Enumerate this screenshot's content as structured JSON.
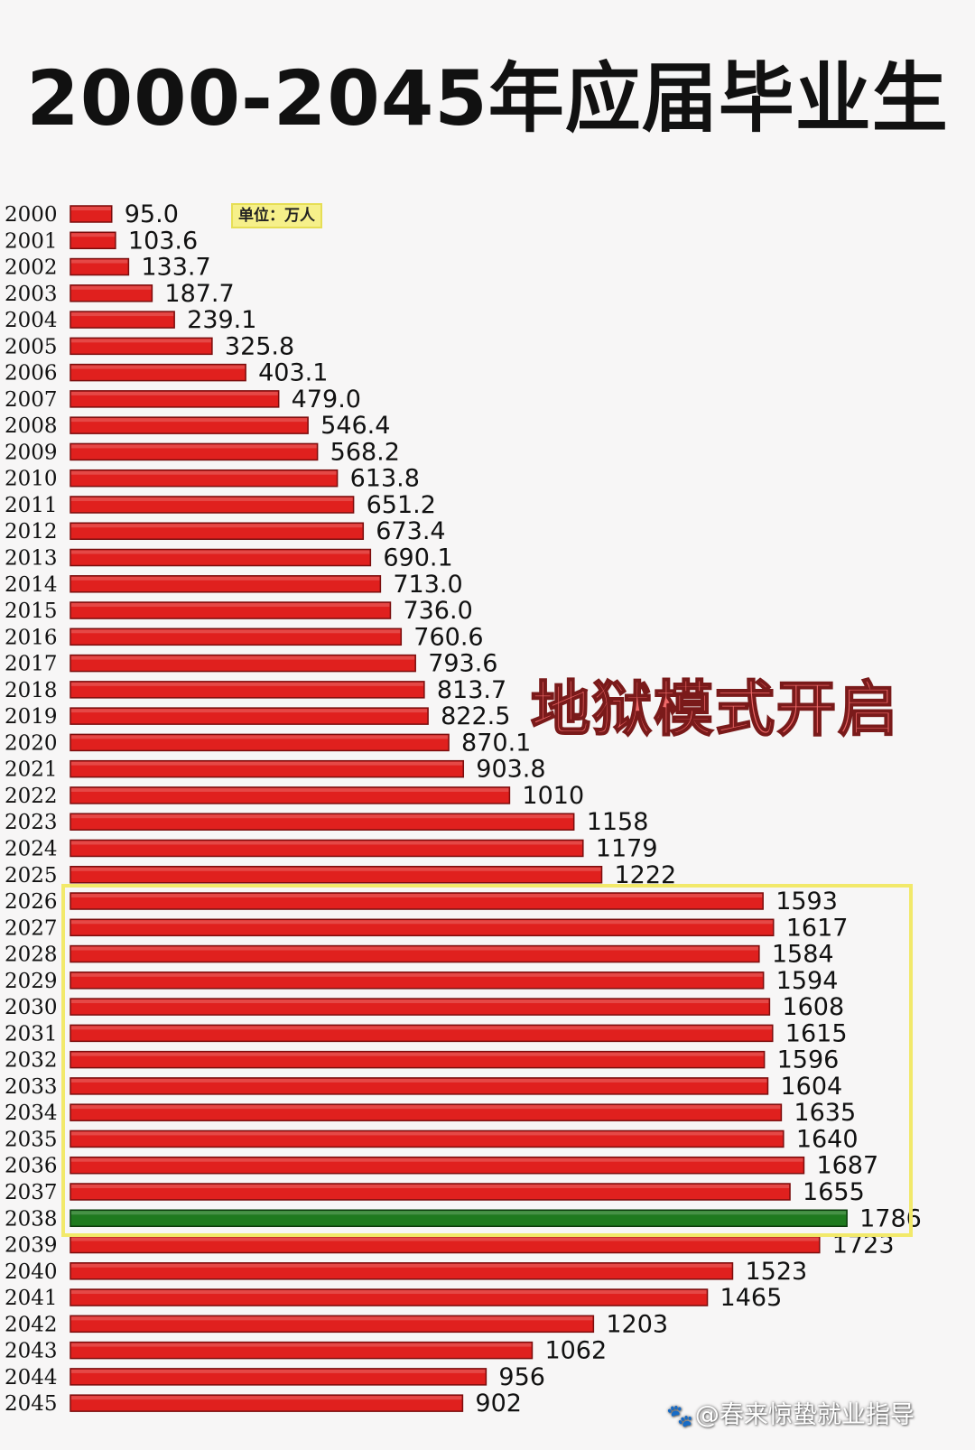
{
  "title": "2000-2045年应届毕业生",
  "unit_label": "单位：万人",
  "annotation": "地狱模式开启",
  "watermark": "@春来惊蛰就业指导",
  "colors": {
    "bar": "#e0201e",
    "bar_highlight": "#1f7a1f",
    "bar_border": "#7a0d0d",
    "box": "#f2e96a",
    "annotation": "#f06a6a"
  },
  "chart_data": {
    "type": "bar",
    "orientation": "horizontal",
    "title": "2000-2045年应届毕业生",
    "unit": "万人",
    "highlight_range": [
      "2026",
      "2038"
    ],
    "highlight_bar": "2038",
    "categories": [
      "2000",
      "2001",
      "2002",
      "2003",
      "2004",
      "2005",
      "2006",
      "2007",
      "2008",
      "2009",
      "2010",
      "2011",
      "2012",
      "2013",
      "2014",
      "2015",
      "2016",
      "2017",
      "2018",
      "2019",
      "2020",
      "2021",
      "2022",
      "2023",
      "2024",
      "2025",
      "2026",
      "2027",
      "2028",
      "2029",
      "2030",
      "2031",
      "2032",
      "2033",
      "2034",
      "2035",
      "2036",
      "2037",
      "2038",
      "2039",
      "2040",
      "2041",
      "2042",
      "2043",
      "2044",
      "2045"
    ],
    "values": [
      95.0,
      103.6,
      133.7,
      187.7,
      239.1,
      325.8,
      403.1,
      479.0,
      546.4,
      568.2,
      613.8,
      651.2,
      673.4,
      690.1,
      713.0,
      736.0,
      760.6,
      793.6,
      813.7,
      822.5,
      870.1,
      903.8,
      1010,
      1158,
      1179,
      1222,
      1593,
      1617,
      1584,
      1594,
      1608,
      1615,
      1596,
      1604,
      1635,
      1640,
      1687,
      1655,
      1786,
      1723,
      1523,
      1465,
      1203,
      1062,
      956,
      902
    ],
    "value_labels": [
      "95.0",
      "103.6",
      "133.7",
      "187.7",
      "239.1",
      "325.8",
      "403.1",
      "479.0",
      "546.4",
      "568.2",
      "613.8",
      "651.2",
      "673.4",
      "690.1",
      "713.0",
      "736.0",
      "760.6",
      "793.6",
      "813.7",
      "822.5",
      "870.1",
      "903.8",
      "1010",
      "1158",
      "1179",
      "1222",
      "1593",
      "1617",
      "1584",
      "1594",
      "1608",
      "1615",
      "1596",
      "1604",
      "1635",
      "1640",
      "1687",
      "1655",
      "1786",
      "1723",
      "1523",
      "1465",
      "1203",
      "1062",
      "956",
      "902"
    ]
  }
}
